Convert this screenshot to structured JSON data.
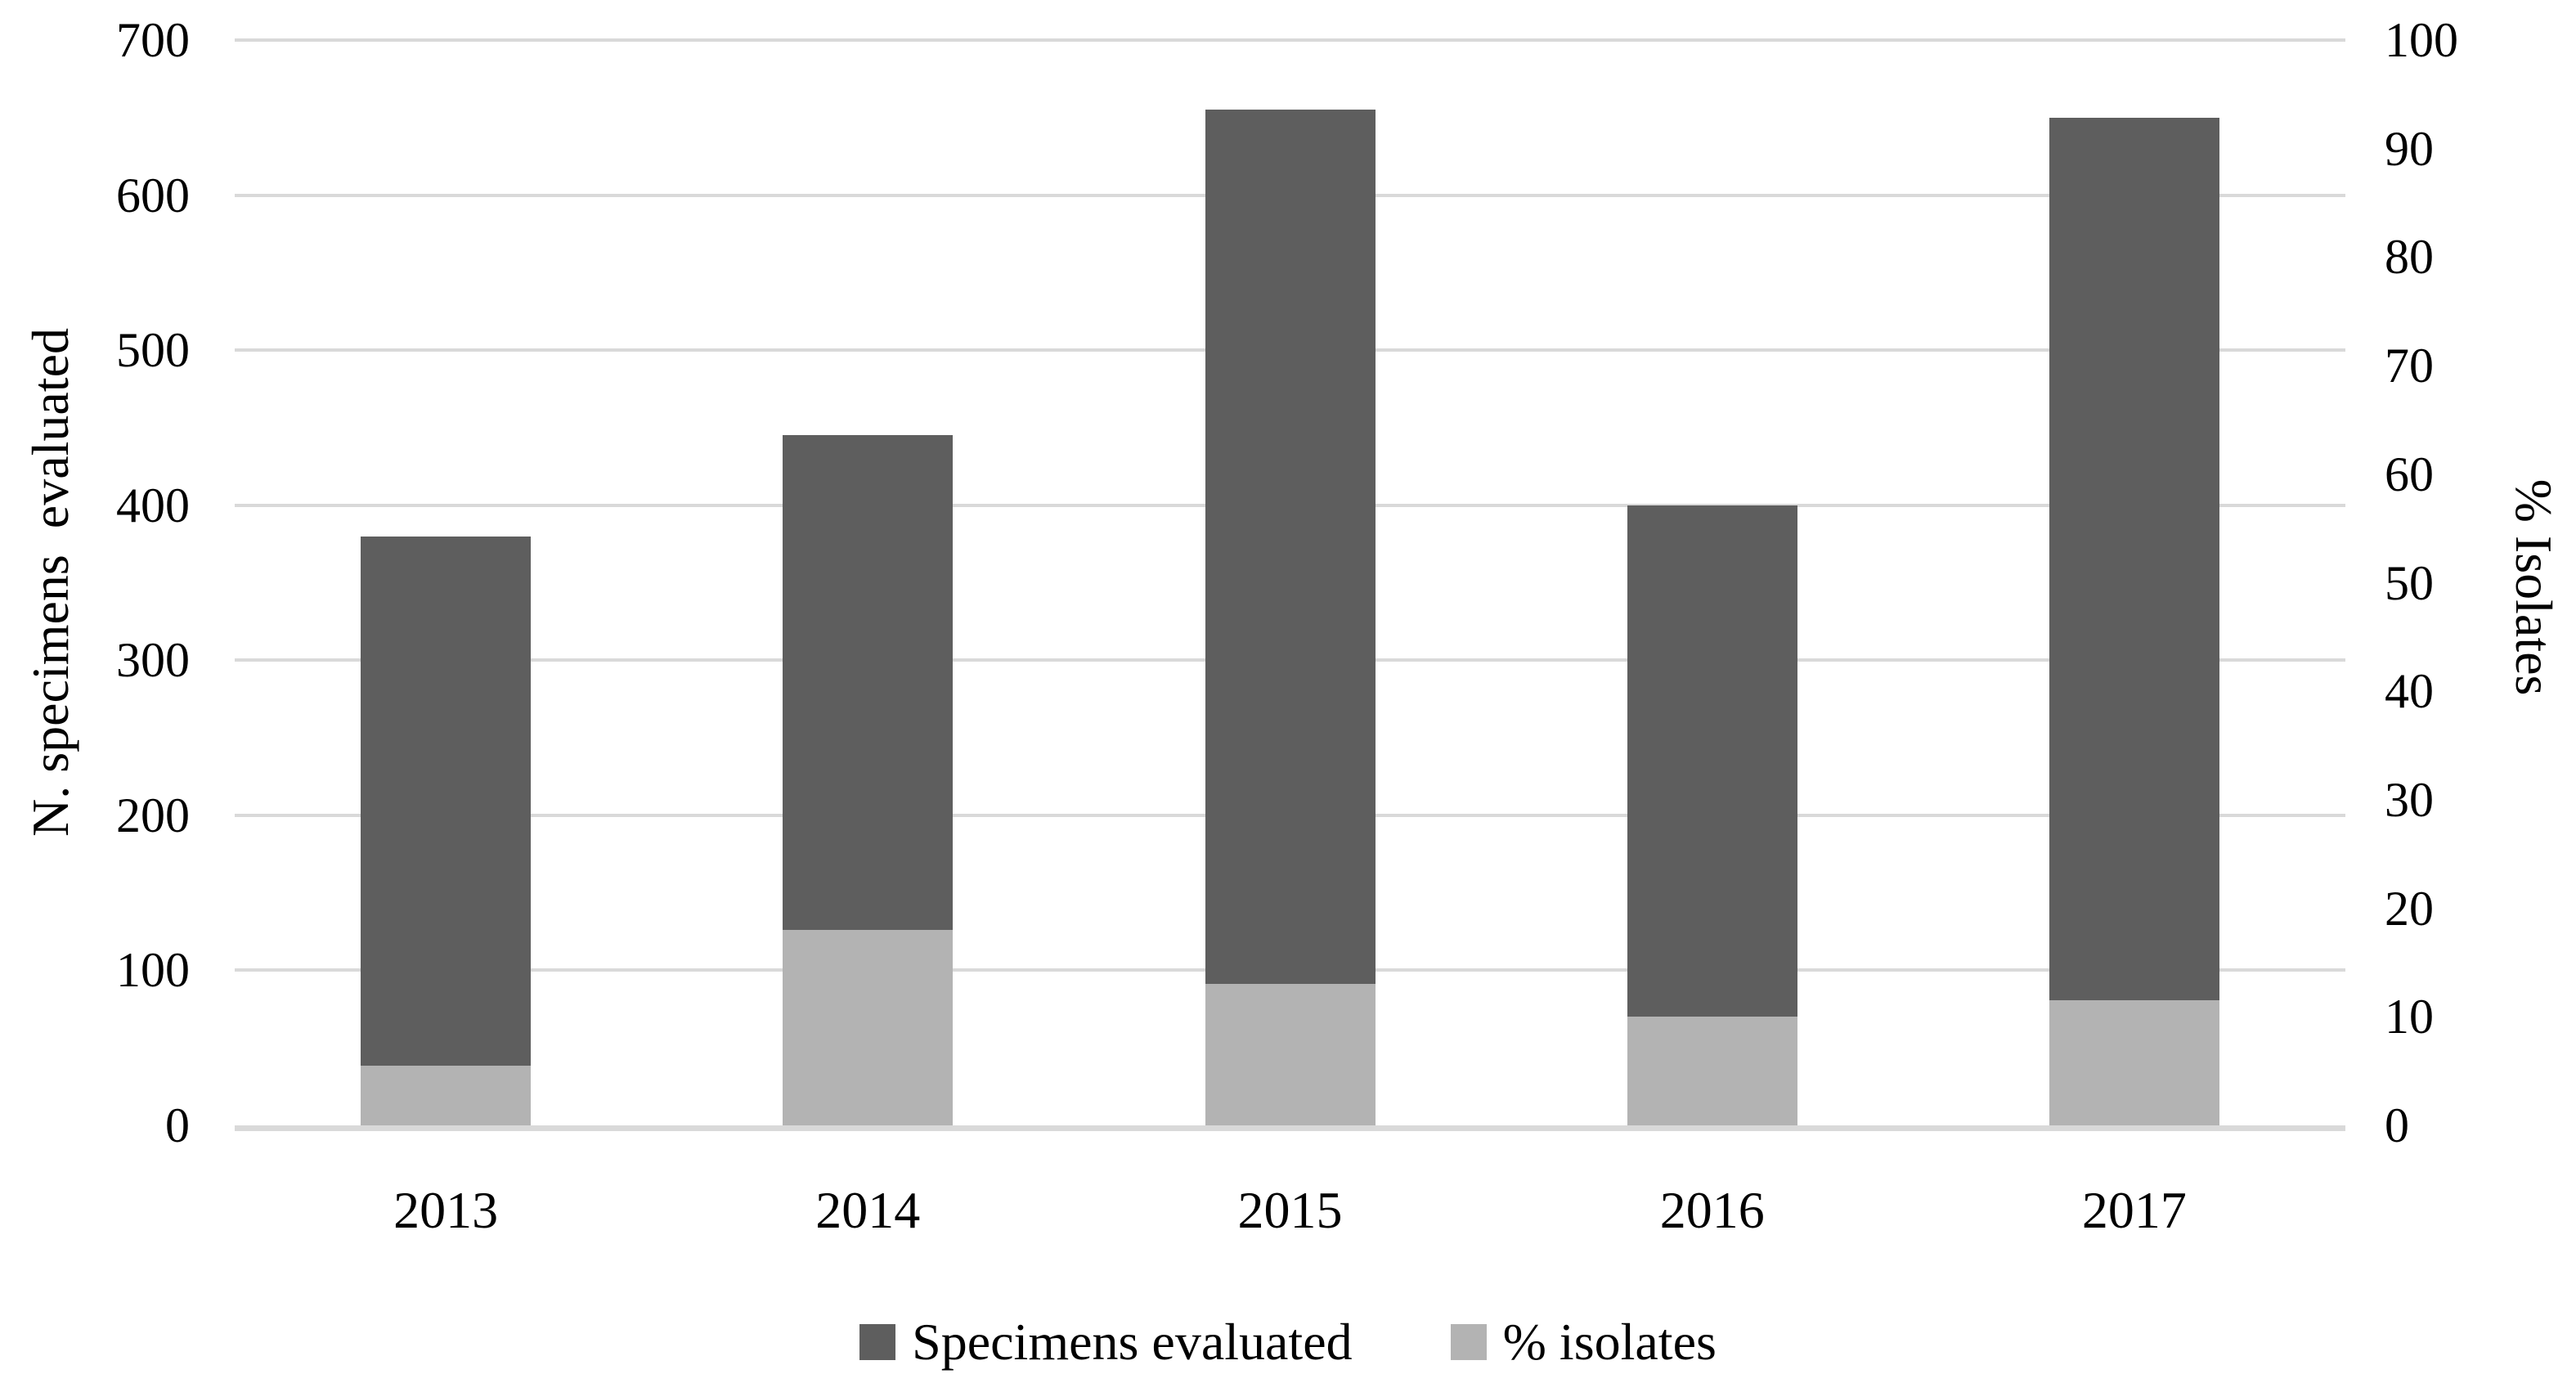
{
  "chart_data": {
    "type": "bar",
    "subtype": "overlapped-columns-dual-axis",
    "title": "",
    "categories": [
      "2013",
      "2014",
      "2015",
      "2016",
      "2017"
    ],
    "series": [
      {
        "name": "Specimens evaluated",
        "axis": "left",
        "color": "#5e5e5e",
        "values": [
          380,
          445,
          655,
          400,
          650
        ]
      },
      {
        "name": "% isolates",
        "axis": "right",
        "color": "#b3b3b3",
        "values": [
          5.5,
          18,
          13,
          10,
          11.5
        ]
      }
    ],
    "left_axis": {
      "label": "N. specimens  evaluated",
      "min": 0,
      "max": 700,
      "step": 100,
      "ticks": [
        "0",
        "100",
        "200",
        "300",
        "400",
        "500",
        "600",
        "700"
      ]
    },
    "right_axis": {
      "label": "% Isolates",
      "min": 0,
      "max": 100,
      "step": 10,
      "ticks": [
        "0",
        "10",
        "20",
        "30",
        "40",
        "50",
        "60",
        "70",
        "80",
        "90",
        "100"
      ]
    },
    "grid": "horizontal-major",
    "gridline_color": "#d9d9d9",
    "axis_line_color": "#d9d9d9",
    "text_color": "#000000",
    "background": "#ffffff",
    "legend_position": "bottom"
  }
}
